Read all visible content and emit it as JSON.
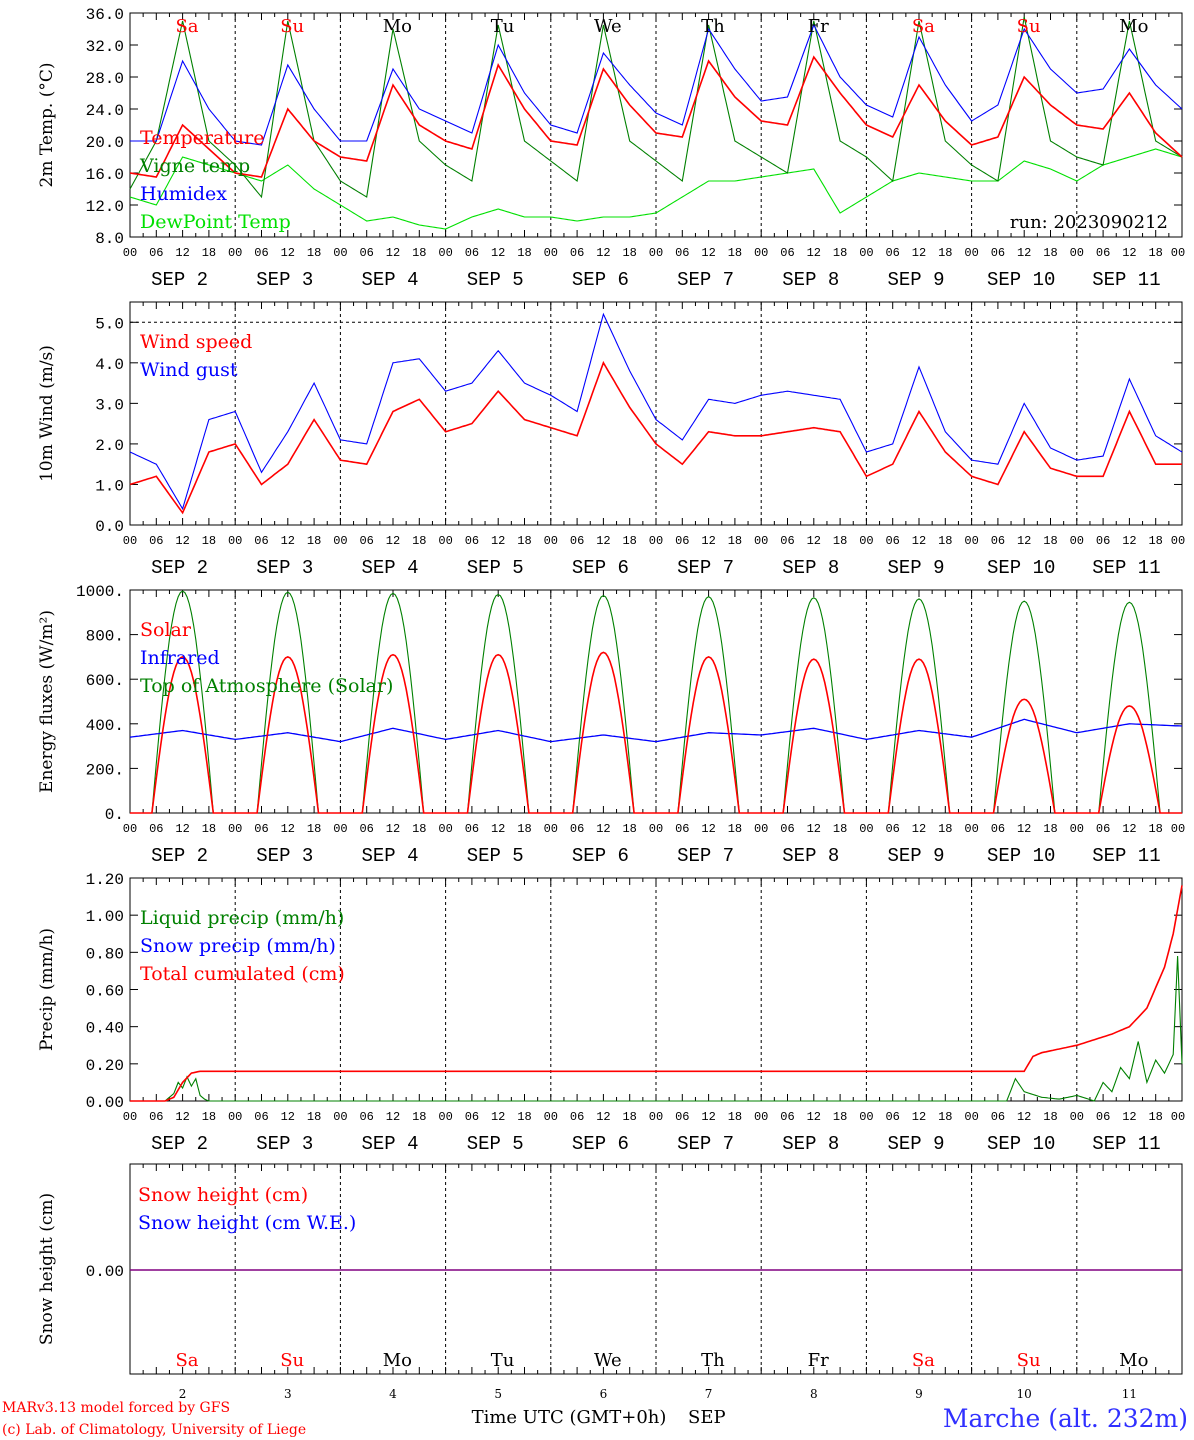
{
  "colors": {
    "red": "#ff0000",
    "darkgreen": "#008000",
    "blue": "#0000ff",
    "lightgreen": "#00e000",
    "purple": "#800080",
    "grid": "#000000",
    "weekend": "#ff0000",
    "weekday": "#000000"
  },
  "days": {
    "names": [
      "Sa",
      "Su",
      "Mo",
      "Tu",
      "We",
      "Th",
      "Fr",
      "Sa",
      "Su",
      "Mo"
    ],
    "weekend": [
      true,
      true,
      false,
      false,
      false,
      false,
      false,
      true,
      true,
      false
    ],
    "date_labels": [
      "SEP  2",
      "SEP  3",
      "SEP  4",
      "SEP  5",
      "SEP  6",
      "SEP  7",
      "SEP  8",
      "SEP  9",
      "SEP 10",
      "SEP 11"
    ],
    "numbers": [
      "2",
      "3",
      "4",
      "5",
      "6",
      "7",
      "8",
      "9",
      "10",
      "11"
    ],
    "hour_ticks": [
      "00",
      "06",
      "12",
      "18"
    ],
    "final_tick": "00"
  },
  "footer": {
    "model": "MARv3.13 model forced by GFS",
    "credit": "(c) Lab. of Climatology, University of Liege",
    "time_axis": "Time UTC (GMT+0h)",
    "month": "SEP",
    "station": "Marche (alt. 232m)"
  },
  "chart_data": [
    {
      "type": "line",
      "ylabel": "2m Temp. (°C)",
      "ylim": [
        8.0,
        36.0
      ],
      "yticks": [
        "8.0",
        "12.0",
        "16.0",
        "20.0",
        "24.0",
        "28.0",
        "32.0",
        "36.0"
      ],
      "annotation": "run: 2023090212",
      "legend": [
        "Temperature",
        "Vigne temp",
        "Humidex",
        "DewPoint Temp"
      ],
      "x_hours": [
        0,
        6,
        12,
        18,
        24,
        30,
        36,
        42,
        48,
        54,
        60,
        66,
        72,
        78,
        84,
        90,
        96,
        102,
        108,
        114,
        120,
        126,
        132,
        138,
        144,
        150,
        156,
        162,
        168,
        174,
        180,
        186,
        192,
        198,
        204,
        210,
        216,
        222,
        228,
        234,
        240
      ],
      "series": [
        {
          "name": "Temperature",
          "color": "red",
          "values": [
            16.0,
            15.5,
            22.0,
            19.0,
            16.0,
            15.5,
            24.0,
            20.0,
            18.0,
            17.5,
            27.0,
            22.0,
            20.0,
            19.0,
            29.5,
            24.0,
            20.0,
            19.5,
            29.0,
            24.5,
            21.0,
            20.5,
            30.0,
            25.5,
            22.5,
            22.0,
            30.5,
            26.0,
            22.0,
            20.5,
            27.0,
            22.5,
            19.5,
            20.5,
            28.0,
            24.5,
            22.0,
            21.5,
            26.0,
            21.0,
            18.0
          ]
        },
        {
          "name": "Vigne temp",
          "color": "darkgreen",
          "values": [
            14.0,
            20.0,
            35.0,
            20.0,
            17.0,
            13.0,
            35.0,
            20.0,
            15.0,
            13.0,
            34.0,
            20.0,
            17.0,
            15.0,
            34.5,
            20.0,
            17.5,
            15.0,
            34.5,
            20.0,
            17.5,
            15.0,
            34.5,
            20.0,
            18.0,
            16.0,
            35.0,
            20.0,
            18.0,
            15.0,
            35.0,
            20.0,
            17.0,
            15.0,
            35.5,
            20.0,
            18.0,
            17.0,
            35.0,
            20.0,
            18.0
          ]
        },
        {
          "name": "Humidex",
          "color": "blue",
          "values": [
            20.0,
            20.0,
            30.0,
            24.0,
            20.0,
            19.5,
            29.5,
            24.0,
            20.0,
            20.0,
            29.0,
            24.0,
            22.5,
            21.0,
            32.0,
            26.0,
            22.0,
            21.0,
            31.0,
            27.0,
            23.5,
            22.0,
            34.0,
            29.0,
            25.0,
            25.5,
            34.5,
            28.0,
            24.5,
            23.0,
            33.0,
            27.0,
            22.5,
            24.5,
            34.0,
            29.0,
            26.0,
            26.5,
            31.5,
            27.0,
            24.0
          ]
        },
        {
          "name": "DewPoint Temp",
          "color": "lightgreen",
          "values": [
            13.0,
            12.0,
            18.0,
            17.0,
            16.0,
            15.0,
            17.0,
            14.0,
            12.0,
            10.0,
            10.5,
            9.5,
            9.0,
            10.5,
            11.5,
            10.5,
            10.5,
            10.0,
            10.5,
            10.5,
            11.0,
            13.0,
            15.0,
            15.0,
            15.5,
            16.0,
            16.5,
            11.0,
            13.0,
            15.0,
            16.0,
            15.5,
            15.0,
            15.0,
            17.5,
            16.5,
            15.0,
            17.0,
            18.0,
            19.0,
            18.0
          ]
        }
      ]
    },
    {
      "type": "line",
      "ylabel": "10m Wind (m/s)",
      "ylim": [
        0.0,
        5.5
      ],
      "yticks": [
        "0.0",
        "1.0",
        "2.0",
        "3.0",
        "4.0",
        "5.0"
      ],
      "reference_line": 5.0,
      "legend": [
        "Wind speed",
        "Wind gust"
      ],
      "x_hours": [
        0,
        6,
        12,
        18,
        24,
        30,
        36,
        42,
        48,
        54,
        60,
        66,
        72,
        78,
        84,
        90,
        96,
        102,
        108,
        114,
        120,
        126,
        132,
        138,
        144,
        150,
        156,
        162,
        168,
        174,
        180,
        186,
        192,
        198,
        204,
        210,
        216,
        222,
        228,
        234,
        240
      ],
      "series": [
        {
          "name": "Wind speed",
          "color": "red",
          "values": [
            1.0,
            1.2,
            0.3,
            1.8,
            2.0,
            1.0,
            1.5,
            2.6,
            1.6,
            1.5,
            2.8,
            3.1,
            2.3,
            2.5,
            3.3,
            2.6,
            2.4,
            2.2,
            4.0,
            2.9,
            2.0,
            1.5,
            2.3,
            2.2,
            2.2,
            2.3,
            2.4,
            2.3,
            1.2,
            1.5,
            2.8,
            1.8,
            1.2,
            1.0,
            2.3,
            1.4,
            1.2,
            1.2,
            2.8,
            1.5,
            1.5
          ]
        },
        {
          "name": "Wind gust",
          "color": "blue",
          "values": [
            1.8,
            1.5,
            0.4,
            2.6,
            2.8,
            1.3,
            2.3,
            3.5,
            2.1,
            2.0,
            4.0,
            4.1,
            3.3,
            3.5,
            4.3,
            3.5,
            3.2,
            2.8,
            5.2,
            3.8,
            2.6,
            2.1,
            3.1,
            3.0,
            3.2,
            3.3,
            3.2,
            3.1,
            1.8,
            2.0,
            3.9,
            2.3,
            1.6,
            1.5,
            3.0,
            1.9,
            1.6,
            1.7,
            3.6,
            2.2,
            1.8
          ]
        }
      ]
    },
    {
      "type": "line",
      "ylabel": "Energy fluxes (W/m²)",
      "ylim": [
        0,
        1000
      ],
      "yticks": [
        "0.",
        "200.",
        "400.",
        "600.",
        "800.",
        "1000."
      ],
      "legend": [
        "Solar",
        "Infrared",
        "Top of Atmosphere (Solar)"
      ],
      "daily_peaks": {
        "solar": [
          700,
          700,
          710,
          710,
          720,
          700,
          690,
          690,
          510,
          480
        ],
        "toa": [
          995,
          990,
          985,
          980,
          975,
          970,
          965,
          960,
          950,
          945
        ]
      },
      "sun_hours": [
        5,
        19
      ],
      "series": [
        {
          "name": "Infrared",
          "color": "blue",
          "x_hours": [
            0,
            12,
            24,
            36,
            48,
            60,
            72,
            84,
            96,
            108,
            120,
            132,
            144,
            156,
            168,
            180,
            192,
            204,
            216,
            228,
            240
          ],
          "values": [
            340,
            370,
            330,
            360,
            320,
            380,
            330,
            370,
            320,
            350,
            320,
            360,
            350,
            380,
            330,
            370,
            340,
            420,
            360,
            400,
            390
          ]
        }
      ]
    },
    {
      "type": "line",
      "ylabel": "Precip (mm/h)",
      "ylim": [
        0.0,
        1.2
      ],
      "yticks": [
        "0.00",
        "0.20",
        "0.40",
        "0.60",
        "0.80",
        "1.00",
        "1.20"
      ],
      "legend": [
        "Liquid precip (mm/h)",
        "Snow precip (mm/h)",
        "Total cumulated (cm)"
      ],
      "series": [
        {
          "name": "Total cumulated (cm)",
          "color": "red",
          "x_hours": [
            0,
            8,
            10,
            12,
            14,
            16,
            18,
            24,
            100,
            200,
            204,
            206,
            208,
            212,
            216,
            220,
            224,
            228,
            232,
            236,
            238,
            240
          ],
          "values": [
            0,
            0,
            0.02,
            0.1,
            0.15,
            0.16,
            0.16,
            0.16,
            0.16,
            0.16,
            0.16,
            0.24,
            0.26,
            0.28,
            0.3,
            0.33,
            0.36,
            0.4,
            0.5,
            0.72,
            0.9,
            1.16
          ]
        },
        {
          "name": "Liquid precip (mm/h)",
          "color": "darkgreen",
          "x_hours": [
            0,
            8,
            10,
            11,
            12,
            13,
            14,
            15,
            16,
            17,
            18,
            200,
            202,
            204,
            208,
            212,
            216,
            220,
            222,
            224,
            226,
            228,
            230,
            232,
            234,
            236,
            238,
            239,
            240
          ],
          "values": [
            0,
            0,
            0.04,
            0.1,
            0.07,
            0.13,
            0.08,
            0.12,
            0.03,
            0.01,
            0,
            0,
            0.12,
            0.05,
            0.02,
            0.01,
            0.03,
            0.0,
            0.1,
            0.05,
            0.18,
            0.12,
            0.32,
            0.1,
            0.22,
            0.15,
            0.25,
            0.78,
            0.2
          ]
        }
      ]
    },
    {
      "type": "line",
      "ylabel": "Snow height (cm)",
      "ylim": [
        -1,
        1
      ],
      "yticks": [
        "0.00"
      ],
      "legend": [
        "Snow height (cm)",
        "Snow height (cm W.E.)"
      ],
      "series": [
        {
          "name": "Snow height",
          "color": "purple",
          "x_hours": [
            0,
            240
          ],
          "values": [
            0,
            0
          ]
        }
      ]
    }
  ]
}
